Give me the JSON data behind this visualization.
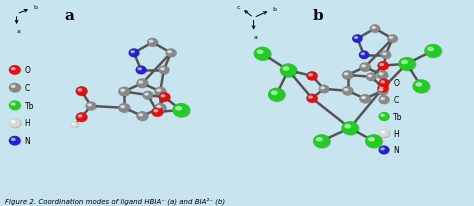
{
  "fig_width": 4.74,
  "fig_height": 2.07,
  "bg_color": "#cce8f0",
  "panel_bg": "#cce8f0",
  "panel_a_label": "a",
  "panel_b_label": "b",
  "atom_colors": {
    "C": "#888888",
    "N": "#2222cc",
    "O": "#dd1111",
    "Tb": "#22cc22",
    "H": "#d8d8d8"
  },
  "legend_items": [
    {
      "label": "O",
      "color": "#dd1111"
    },
    {
      "label": "C",
      "color": "#888888"
    },
    {
      "label": "Tb",
      "color": "#22cc22"
    },
    {
      "label": "H",
      "color": "#d8d8d8"
    },
    {
      "label": "N",
      "color": "#2222cc"
    }
  ],
  "caption": "Figure 2. Coordination modes of ligand HBIA⁻ (a) and BIA²⁻ (b)"
}
